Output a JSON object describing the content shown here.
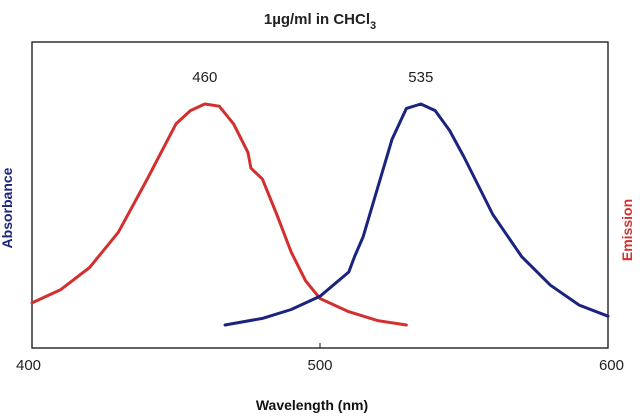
{
  "chart_data": {
    "type": "line",
    "title": "1µg/ml in CHCl",
    "title_subscript": "3",
    "xlabel": "Wavelength (nm)",
    "ylabel_left": "Absorbance",
    "ylabel_right": "Emission",
    "xlim": [
      400,
      600
    ],
    "ylim": [
      0,
      1.1
    ],
    "x_ticks": [
      "400",
      "500",
      "600"
    ],
    "grid": false,
    "annotations": [
      "460",
      "535"
    ],
    "colors": {
      "absorbance": "#1a237e",
      "emission": "#d32f2f",
      "axis": "#111111"
    },
    "series": [
      {
        "key": "emission",
        "color": "#d32f2f",
        "points": [
          [
            400,
            0.1
          ],
          [
            410,
            0.16
          ],
          [
            420,
            0.26
          ],
          [
            430,
            0.42
          ],
          [
            440,
            0.66
          ],
          [
            450,
            0.91
          ],
          [
            455,
            0.97
          ],
          [
            460,
            1.0
          ],
          [
            465,
            0.99
          ],
          [
            470,
            0.91
          ],
          [
            475,
            0.78
          ],
          [
            476,
            0.71
          ],
          [
            480,
            0.66
          ],
          [
            485,
            0.5
          ],
          [
            490,
            0.33
          ],
          [
            495,
            0.2
          ],
          [
            500,
            0.12
          ],
          [
            510,
            0.06
          ],
          [
            520,
            0.02
          ],
          [
            530,
            0.0
          ]
        ]
      },
      {
        "key": "absorbance",
        "color": "#1a237e",
        "points": [
          [
            467,
            0.0
          ],
          [
            480,
            0.03
          ],
          [
            490,
            0.07
          ],
          [
            500,
            0.13
          ],
          [
            510,
            0.24
          ],
          [
            512,
            0.31
          ],
          [
            515,
            0.4
          ],
          [
            520,
            0.62
          ],
          [
            525,
            0.84
          ],
          [
            530,
            0.98
          ],
          [
            535,
            1.0
          ],
          [
            540,
            0.97
          ],
          [
            545,
            0.88
          ],
          [
            550,
            0.76
          ],
          [
            560,
            0.5
          ],
          [
            570,
            0.31
          ],
          [
            580,
            0.18
          ],
          [
            590,
            0.09
          ],
          [
            600,
            0.04
          ]
        ]
      }
    ]
  }
}
